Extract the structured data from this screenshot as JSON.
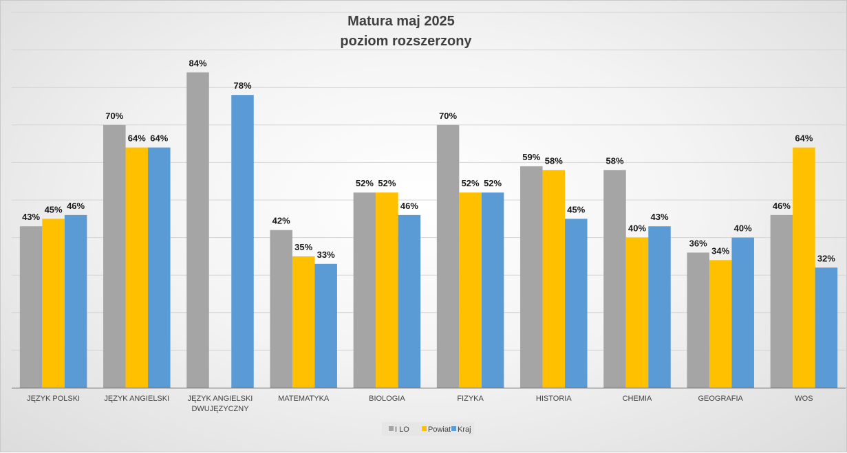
{
  "chart_data": {
    "type": "bar",
    "title_lines": [
      "Matura maj 2025",
      "poziom rozszerzony"
    ],
    "categories": [
      [
        "JĘZYK POLSKI"
      ],
      [
        "JĘZYK ANGIELSKI"
      ],
      [
        "JĘZYK ANGIELSKI",
        "DWUJĘZYCZNY"
      ],
      [
        "MATEMATYKA"
      ],
      [
        "BIOLOGIA"
      ],
      [
        "FIZYKA"
      ],
      [
        "HISTORIA"
      ],
      [
        "CHEMIA"
      ],
      [
        "GEOGRAFIA"
      ],
      [
        "WOS"
      ]
    ],
    "series": [
      {
        "name": "I LO",
        "color": "#a5a5a5",
        "values": [
          43,
          70,
          84,
          42,
          52,
          70,
          59,
          58,
          36,
          46
        ]
      },
      {
        "name": "Powiat",
        "color": "#ffc000",
        "values": [
          45,
          64,
          null,
          35,
          52,
          52,
          58,
          40,
          34,
          64
        ]
      },
      {
        "name": "Kraj",
        "color": "#5b9bd5",
        "values": [
          46,
          64,
          78,
          33,
          46,
          52,
          45,
          43,
          40,
          32
        ]
      }
    ],
    "value_suffix": "%",
    "ylim": [
      0,
      100
    ],
    "gridlines": true,
    "legend_position": "bottom"
  }
}
